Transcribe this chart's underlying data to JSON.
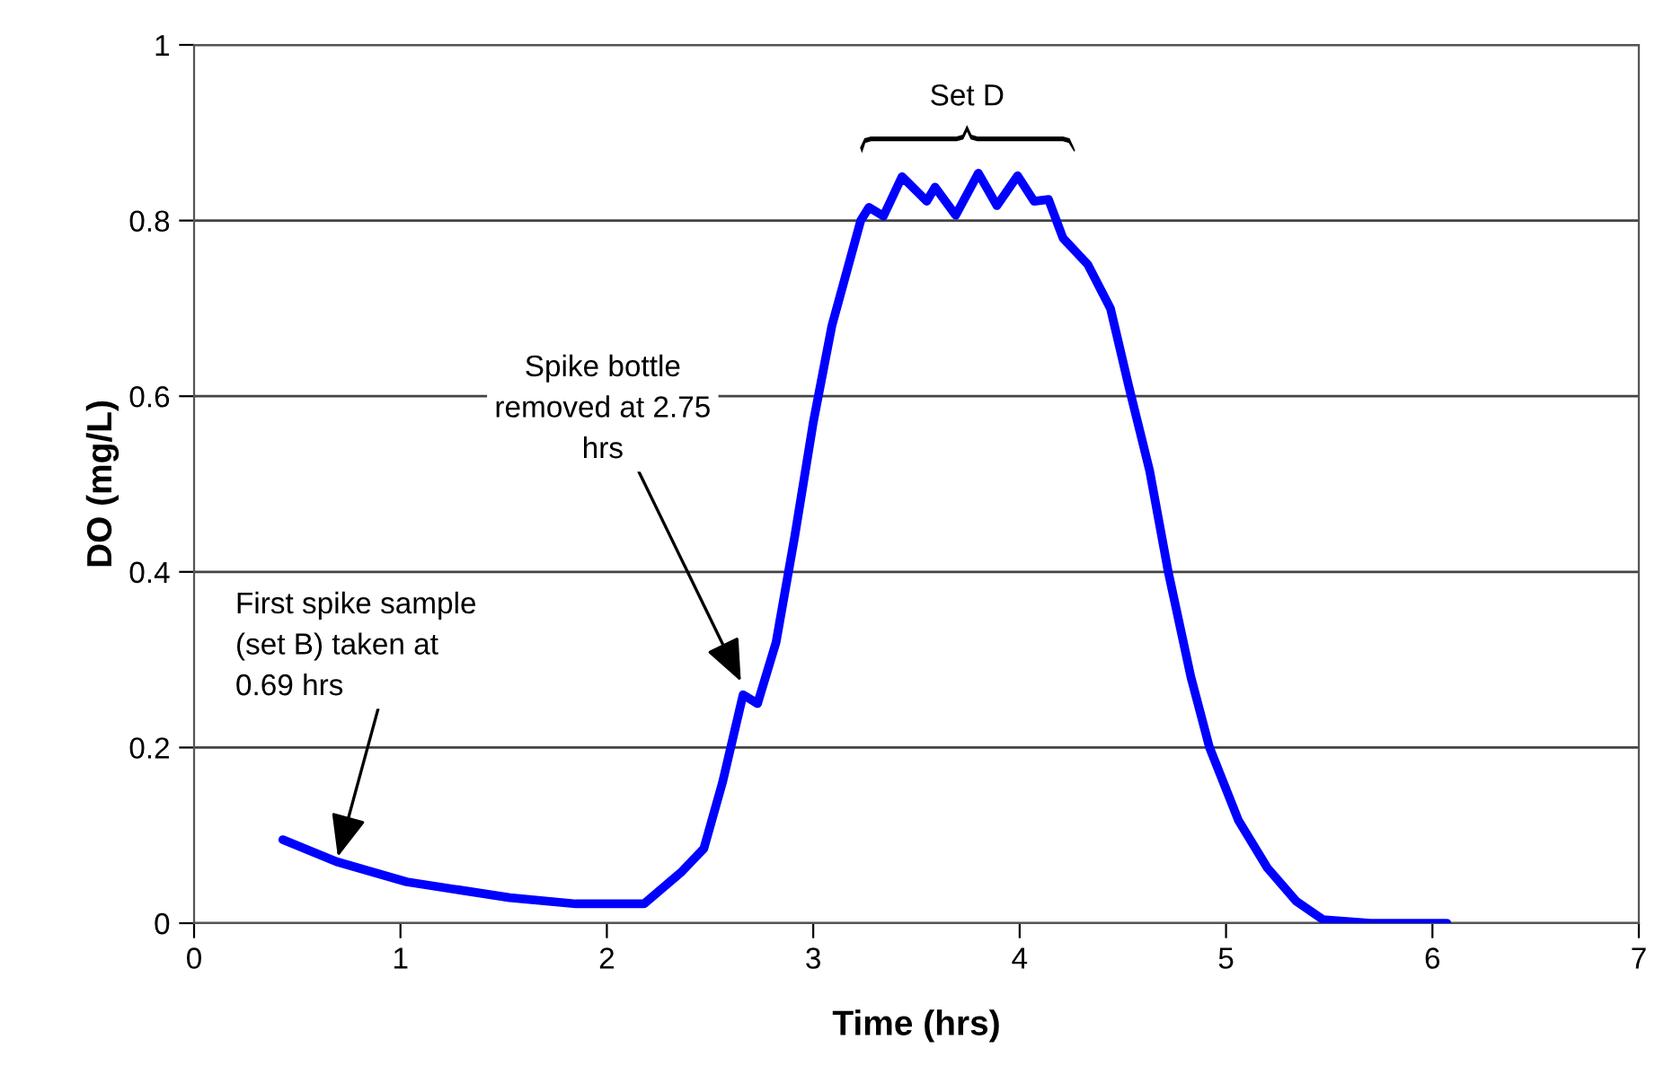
{
  "chart_data": {
    "type": "line",
    "xlabel": "Time (hrs)",
    "ylabel": "DO (mg/L)",
    "xlim": [
      0,
      7
    ],
    "xticks": [
      0,
      1,
      2,
      3,
      4,
      5,
      6,
      7
    ],
    "ylim": [
      0,
      1
    ],
    "yticks": [
      0,
      {
        "value": 0.2,
        "label": "0.2"
      },
      {
        "value": 0.4,
        "label": "0.4"
      },
      {
        "value": 0.6,
        "label": "0.6"
      },
      {
        "value": 0.8,
        "label": "0.8"
      },
      1
    ],
    "grid": "y",
    "line_style": "solid",
    "marker": "none",
    "series": [
      {
        "color": "#0000ff",
        "x": [
          0.43,
          0.69,
          1.03,
          1.53,
          1.85,
          2.18,
          2.36,
          2.47,
          2.56,
          2.66,
          2.73,
          2.82,
          2.91,
          3.0,
          3.09,
          3.23,
          3.27,
          3.34,
          3.43,
          3.55,
          3.59,
          3.69,
          3.8,
          3.89,
          3.99,
          4.07,
          4.14,
          4.21,
          4.33,
          4.44,
          4.53,
          4.63,
          4.72,
          4.83,
          4.92,
          5.06,
          5.2,
          5.34,
          5.47,
          5.7,
          6.07
        ],
        "values": [
          0.095,
          0.07,
          0.047,
          0.029,
          0.022,
          0.022,
          0.058,
          0.085,
          0.16,
          0.26,
          0.25,
          0.32,
          0.44,
          0.57,
          0.68,
          0.8,
          0.815,
          0.805,
          0.85,
          0.822,
          0.838,
          0.806,
          0.854,
          0.817,
          0.851,
          0.822,
          0.824,
          0.78,
          0.75,
          0.7,
          0.61,
          0.515,
          0.4,
          0.28,
          0.2,
          0.117,
          0.063,
          0.025,
          0.004,
          0,
          0
        ]
      }
    ],
    "annotations": [
      {
        "text": "First spike sample\n(set B) taken at\n0.69 hrs",
        "x": 0.69,
        "y": 0.07
      },
      {
        "text": "Spike bottle\nremoved at 2.75\nhrs",
        "x": 2.66,
        "y": 0.27
      },
      "Set D"
    ]
  }
}
